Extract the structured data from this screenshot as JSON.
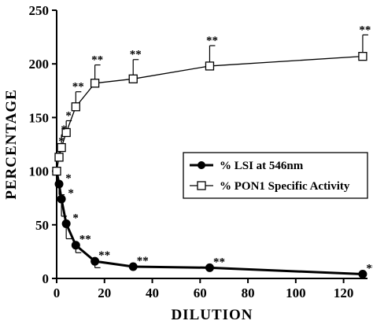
{
  "chart_data": {
    "type": "line",
    "xlabel": "DILUTION",
    "ylabel": "PERCENTAGE",
    "xlim": [
      0,
      130
    ],
    "ylim": [
      0,
      250
    ],
    "x_ticks": [
      0,
      20,
      40,
      60,
      80,
      100,
      120
    ],
    "y_ticks": [
      0,
      50,
      100,
      150,
      200,
      250
    ],
    "grid": false,
    "legend_placement": "center-right",
    "series": [
      {
        "name": "% LSI at 546nm",
        "marker": "filled-circle",
        "color": "#000000",
        "x": [
          0,
          1,
          2,
          4,
          8,
          16,
          32,
          64,
          128
        ],
        "y": [
          100,
          88,
          74,
          51,
          31,
          16,
          11,
          10,
          4
        ],
        "err": [
          0,
          10,
          16,
          14,
          7,
          6,
          0,
          0,
          0
        ],
        "significance": [
          "",
          "*",
          "*",
          "*",
          "**",
          "**",
          "**",
          "**",
          "**"
        ]
      },
      {
        "name": "% PON1 Specific Activity",
        "marker": "open-square",
        "color": "#000000",
        "x": [
          0,
          1,
          2,
          4,
          8,
          16,
          32,
          64,
          128
        ],
        "y": [
          100,
          113,
          122,
          136,
          160,
          182,
          186,
          198,
          207
        ],
        "err": [
          0,
          10,
          12,
          11,
          14,
          17,
          18,
          19,
          20
        ],
        "significance": [
          "",
          "*",
          "*",
          "*",
          "**",
          "**",
          "**",
          "**",
          "**"
        ]
      }
    ]
  }
}
